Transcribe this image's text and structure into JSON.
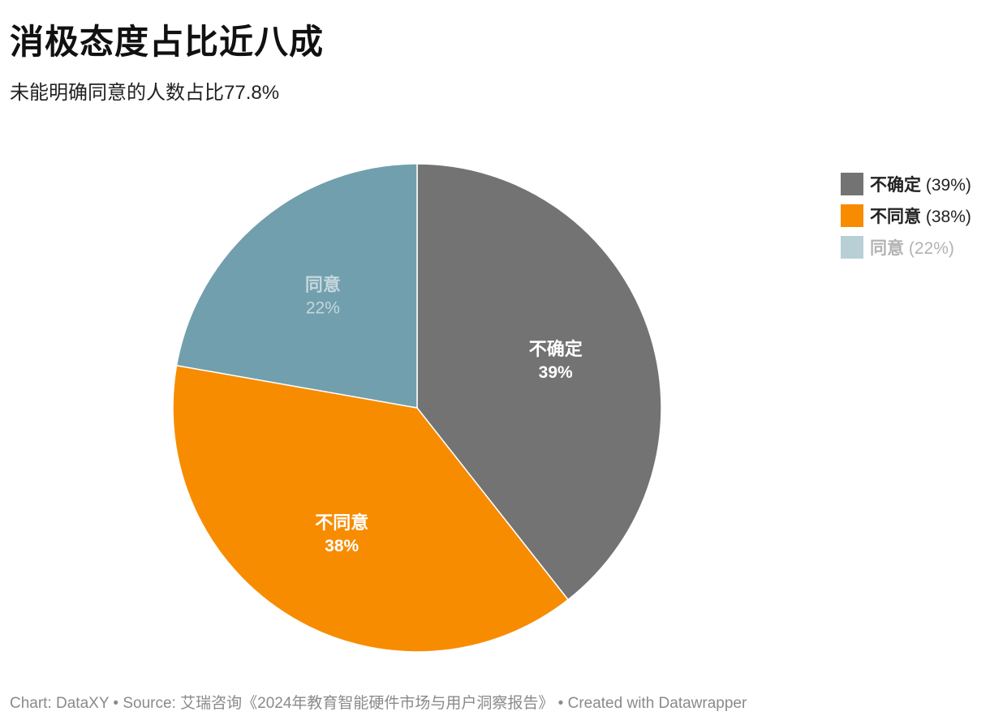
{
  "title": "消极态度占比近八成",
  "subtitle": "未能明确同意的人数占比77.8%",
  "chart_data": {
    "type": "pie",
    "slices": [
      {
        "label": "不确定",
        "value": 39,
        "value_label": "39%",
        "legend_pct": "(39%)",
        "color": "#737373",
        "legend_color": "#737373",
        "text_color": "#ffffff",
        "legend_text_color": "#222222"
      },
      {
        "label": "不同意",
        "value": 38,
        "value_label": "38%",
        "legend_pct": "(38%)",
        "color": "#f78c00",
        "legend_color": "#f78c00",
        "text_color": "#ffffff",
        "legend_text_color": "#222222"
      },
      {
        "label": "同意",
        "value": 22,
        "value_label": "22%",
        "legend_pct": "(22%)",
        "color": "#719fad",
        "legend_color": "#b8cfd6",
        "text_color": "#c5d7dd",
        "legend_text_color": "#b3b3b3"
      }
    ],
    "legend_position": "top-right"
  },
  "footer": "Chart: DataXY • Source: 艾瑞咨询《2024年教育智能硬件市场与用户洞察报告》 • Created with Datawrapper"
}
